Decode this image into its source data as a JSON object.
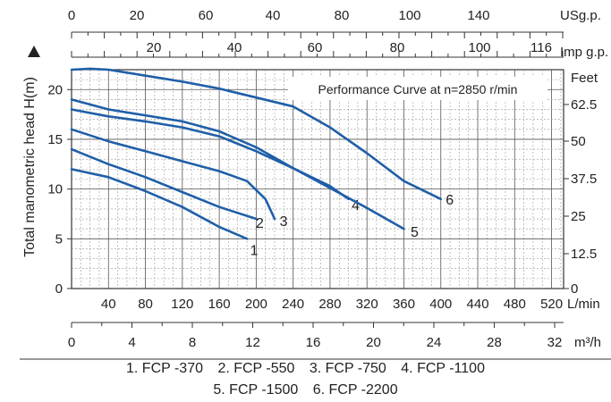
{
  "chart_data": {
    "type": "line",
    "title": "Performance Curve at n=2850 r/min",
    "ylabel": "Total manometric head H(m)",
    "ylim": [
      0,
      22
    ],
    "yticks": [
      0,
      5,
      10,
      15,
      20
    ],
    "xlim_lmin": [
      0,
      533
    ],
    "x_lmin_ticks": [
      40,
      80,
      120,
      160,
      200,
      240,
      280,
      320,
      360,
      400,
      440,
      480,
      520
    ],
    "x_lmin_label": "L/min",
    "x_m3h_ticks": [
      "0",
      "4",
      "8",
      "12",
      "16",
      "20",
      "24",
      "28",
      "32"
    ],
    "x_m3h_label": "m³/h",
    "usgp_ticks": [
      "0",
      "20",
      "60",
      "40",
      "80",
      "100",
      "140"
    ],
    "usgp_label": "USg.p.",
    "impgp_ticks": [
      "20",
      "40",
      "60",
      "80",
      "100",
      "116"
    ],
    "impgp_label": "Imp g.p.",
    "feet_ticks": [
      "0",
      "12.5",
      "25",
      "37.5",
      "50",
      "62.5"
    ],
    "feet_label": "Feet",
    "series": [
      {
        "name": "1",
        "x": [
          0,
          40,
          80,
          120,
          160,
          190
        ],
        "y": [
          12,
          11.2,
          9.8,
          8.2,
          6.2,
          5
        ]
      },
      {
        "name": "2",
        "x": [
          0,
          40,
          80,
          120,
          160,
          200
        ],
        "y": [
          14,
          12.5,
          11.2,
          9.7,
          8.2,
          7
        ]
      },
      {
        "name": "3",
        "x": [
          0,
          40,
          80,
          120,
          160,
          190,
          210,
          220
        ],
        "y": [
          16,
          14.8,
          13.8,
          12.8,
          11.8,
          10.8,
          9,
          7
        ]
      },
      {
        "name": "4",
        "x": [
          0,
          40,
          80,
          120,
          160,
          200,
          240,
          280,
          300
        ],
        "y": [
          18,
          17.3,
          16.8,
          16.2,
          15.3,
          13.8,
          12.1,
          10.3,
          9
        ]
      },
      {
        "name": "5",
        "x": [
          0,
          40,
          80,
          120,
          160,
          200,
          240,
          280,
          320,
          360
        ],
        "y": [
          19,
          18,
          17.4,
          16.8,
          15.8,
          14.2,
          12.1,
          10.1,
          8.1,
          6
        ]
      },
      {
        "name": "6",
        "x": [
          0,
          20,
          40,
          80,
          120,
          160,
          200,
          240,
          280,
          320,
          360,
          400
        ],
        "y": [
          22,
          22.1,
          22,
          21.4,
          20.8,
          20.1,
          19.2,
          18.3,
          16.2,
          13.6,
          10.8,
          9
        ]
      }
    ],
    "legend": {
      "row1": [
        "1.  FCP -370",
        "2. FCP  -550",
        "3. FCP -750",
        "4.  FCP -1100"
      ],
      "row2": [
        "5. FCP -1500",
        "6. FCP  -2200"
      ]
    }
  }
}
